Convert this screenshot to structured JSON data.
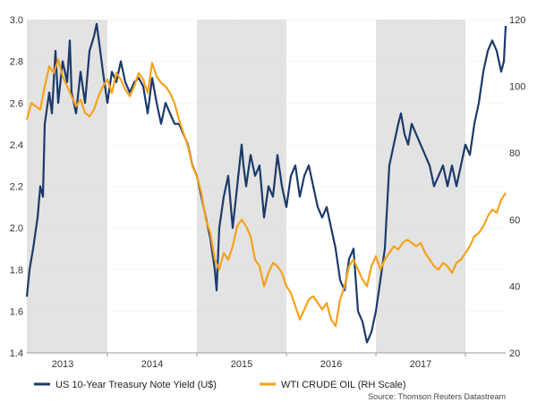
{
  "chart_data": {
    "type": "line",
    "title": "",
    "xlabel": "",
    "x_range": [
      2012.6,
      2017.95
    ],
    "left_axis": {
      "range": [
        1.4,
        3.0
      ],
      "ticks": [
        1.4,
        1.6,
        1.8,
        2.0,
        2.2,
        2.4,
        2.6,
        2.8,
        3.0
      ],
      "tick_labels": [
        "1.4",
        "1.6",
        "1.8",
        "2.0",
        "2.2",
        "2.4",
        "2.6",
        "2.8",
        "3.0"
      ]
    },
    "right_axis": {
      "range": [
        20,
        120
      ],
      "ticks": [
        20,
        40,
        60,
        80,
        100,
        120
      ],
      "tick_labels": [
        "20",
        "40",
        "60",
        "80",
        "100",
        "120"
      ]
    },
    "year_labels": [
      {
        "label": "2013",
        "x": 2013.0
      },
      {
        "label": "2014",
        "x": 2014.0
      },
      {
        "label": "2015",
        "x": 2015.0
      },
      {
        "label": "2016",
        "x": 2016.0
      },
      {
        "label": "2017",
        "x": 2017.0
      }
    ],
    "shaded_years": [
      [
        2012.6,
        2013.5
      ],
      [
        2014.5,
        2015.5
      ],
      [
        2016.5,
        2017.5
      ]
    ],
    "series": [
      {
        "name": "US 10-Year Treasury Note Yield (U$)",
        "axis": "left",
        "color": "#1b3a6b",
        "points": [
          [
            2012.6,
            1.67
          ],
          [
            2012.63,
            1.8
          ],
          [
            2012.67,
            1.9
          ],
          [
            2012.72,
            2.05
          ],
          [
            2012.75,
            2.2
          ],
          [
            2012.78,
            2.15
          ],
          [
            2012.8,
            2.5
          ],
          [
            2012.85,
            2.65
          ],
          [
            2012.88,
            2.55
          ],
          [
            2012.92,
            2.85
          ],
          [
            2012.95,
            2.6
          ],
          [
            2013.0,
            2.8
          ],
          [
            2013.05,
            2.7
          ],
          [
            2013.08,
            2.9
          ],
          [
            2013.1,
            2.65
          ],
          [
            2013.15,
            2.55
          ],
          [
            2013.2,
            2.75
          ],
          [
            2013.25,
            2.6
          ],
          [
            2013.3,
            2.85
          ],
          [
            2013.35,
            2.92
          ],
          [
            2013.38,
            2.98
          ],
          [
            2013.42,
            2.85
          ],
          [
            2013.45,
            2.75
          ],
          [
            2013.5,
            2.6
          ],
          [
            2013.55,
            2.75
          ],
          [
            2013.6,
            2.7
          ],
          [
            2013.65,
            2.8
          ],
          [
            2013.7,
            2.7
          ],
          [
            2013.75,
            2.65
          ],
          [
            2013.8,
            2.7
          ],
          [
            2013.85,
            2.72
          ],
          [
            2013.9,
            2.68
          ],
          [
            2013.95,
            2.55
          ],
          [
            2014.0,
            2.72
          ],
          [
            2014.05,
            2.6
          ],
          [
            2014.1,
            2.5
          ],
          [
            2014.15,
            2.6
          ],
          [
            2014.2,
            2.55
          ],
          [
            2014.25,
            2.5
          ],
          [
            2014.3,
            2.5
          ],
          [
            2014.35,
            2.45
          ],
          [
            2014.4,
            2.4
          ],
          [
            2014.45,
            2.3
          ],
          [
            2014.5,
            2.25
          ],
          [
            2014.55,
            2.15
          ],
          [
            2014.6,
            2.05
          ],
          [
            2014.65,
            1.95
          ],
          [
            2014.7,
            1.8
          ],
          [
            2014.72,
            1.7
          ],
          [
            2014.75,
            2.0
          ],
          [
            2014.8,
            2.15
          ],
          [
            2014.85,
            2.25
          ],
          [
            2014.88,
            2.1
          ],
          [
            2014.9,
            2.0
          ],
          [
            2014.95,
            2.2
          ],
          [
            2015.0,
            2.4
          ],
          [
            2015.02,
            2.3
          ],
          [
            2015.05,
            2.2
          ],
          [
            2015.1,
            2.35
          ],
          [
            2015.15,
            2.25
          ],
          [
            2015.2,
            2.3
          ],
          [
            2015.25,
            2.05
          ],
          [
            2015.3,
            2.2
          ],
          [
            2015.35,
            2.15
          ],
          [
            2015.4,
            2.35
          ],
          [
            2015.45,
            2.2
          ],
          [
            2015.5,
            2.1
          ],
          [
            2015.55,
            2.25
          ],
          [
            2015.6,
            2.3
          ],
          [
            2015.65,
            2.15
          ],
          [
            2015.7,
            2.25
          ],
          [
            2015.75,
            2.3
          ],
          [
            2015.8,
            2.2
          ],
          [
            2015.85,
            2.1
          ],
          [
            2015.9,
            2.05
          ],
          [
            2015.95,
            2.1
          ],
          [
            2016.0,
            2.0
          ],
          [
            2016.05,
            1.9
          ],
          [
            2016.1,
            1.75
          ],
          [
            2016.15,
            1.7
          ],
          [
            2016.2,
            1.85
          ],
          [
            2016.25,
            1.9
          ],
          [
            2016.3,
            1.6
          ],
          [
            2016.35,
            1.55
          ],
          [
            2016.4,
            1.45
          ],
          [
            2016.45,
            1.5
          ],
          [
            2016.5,
            1.6
          ],
          [
            2016.55,
            1.75
          ],
          [
            2016.6,
            1.9
          ],
          [
            2016.65,
            2.3
          ],
          [
            2016.7,
            2.4
          ],
          [
            2016.75,
            2.5
          ],
          [
            2016.78,
            2.55
          ],
          [
            2016.82,
            2.45
          ],
          [
            2016.86,
            2.4
          ],
          [
            2016.9,
            2.5
          ],
          [
            2016.95,
            2.45
          ],
          [
            2017.0,
            2.4
          ],
          [
            2017.05,
            2.35
          ],
          [
            2017.1,
            2.3
          ],
          [
            2017.15,
            2.2
          ],
          [
            2017.2,
            2.25
          ],
          [
            2017.25,
            2.3
          ],
          [
            2017.3,
            2.2
          ],
          [
            2017.35,
            2.3
          ],
          [
            2017.4,
            2.2
          ],
          [
            2017.45,
            2.3
          ],
          [
            2017.5,
            2.4
          ],
          [
            2017.55,
            2.35
          ],
          [
            2017.6,
            2.5
          ],
          [
            2017.65,
            2.6
          ],
          [
            2017.7,
            2.75
          ],
          [
            2017.75,
            2.85
          ],
          [
            2017.8,
            2.9
          ],
          [
            2017.85,
            2.85
          ],
          [
            2017.9,
            2.75
          ],
          [
            2017.93,
            2.8
          ],
          [
            2017.95,
            2.97
          ]
        ]
      },
      {
        "name": "WTI CRUDE OIL (RH Scale)",
        "axis": "right",
        "color": "#f5a21b",
        "points": [
          [
            2012.6,
            90
          ],
          [
            2012.65,
            95
          ],
          [
            2012.7,
            94
          ],
          [
            2012.75,
            93
          ],
          [
            2012.8,
            100
          ],
          [
            2012.85,
            106
          ],
          [
            2012.9,
            104
          ],
          [
            2012.95,
            108
          ],
          [
            2013.0,
            103
          ],
          [
            2013.05,
            100
          ],
          [
            2013.1,
            97
          ],
          [
            2013.15,
            94
          ],
          [
            2013.2,
            96
          ],
          [
            2013.25,
            92
          ],
          [
            2013.3,
            91
          ],
          [
            2013.35,
            93
          ],
          [
            2013.4,
            97
          ],
          [
            2013.45,
            100
          ],
          [
            2013.5,
            102
          ],
          [
            2013.55,
            98
          ],
          [
            2013.6,
            104
          ],
          [
            2013.65,
            102
          ],
          [
            2013.7,
            99
          ],
          [
            2013.75,
            97
          ],
          [
            2013.8,
            100
          ],
          [
            2013.85,
            104
          ],
          [
            2013.9,
            102
          ],
          [
            2013.95,
            98
          ],
          [
            2014.0,
            107
          ],
          [
            2014.05,
            103
          ],
          [
            2014.1,
            101
          ],
          [
            2014.15,
            100
          ],
          [
            2014.2,
            98
          ],
          [
            2014.25,
            95
          ],
          [
            2014.3,
            90
          ],
          [
            2014.35,
            86
          ],
          [
            2014.4,
            82
          ],
          [
            2014.45,
            76
          ],
          [
            2014.5,
            73
          ],
          [
            2014.55,
            68
          ],
          [
            2014.6,
            60
          ],
          [
            2014.65,
            56
          ],
          [
            2014.7,
            48
          ],
          [
            2014.75,
            45
          ],
          [
            2014.8,
            50
          ],
          [
            2014.85,
            48
          ],
          [
            2014.9,
            52
          ],
          [
            2014.95,
            58
          ],
          [
            2015.0,
            60
          ],
          [
            2015.05,
            58
          ],
          [
            2015.1,
            55
          ],
          [
            2015.15,
            48
          ],
          [
            2015.2,
            46
          ],
          [
            2015.25,
            40
          ],
          [
            2015.3,
            44
          ],
          [
            2015.35,
            47
          ],
          [
            2015.4,
            46
          ],
          [
            2015.45,
            44
          ],
          [
            2015.5,
            40
          ],
          [
            2015.55,
            38
          ],
          [
            2015.6,
            34
          ],
          [
            2015.65,
            30
          ],
          [
            2015.7,
            33
          ],
          [
            2015.75,
            36
          ],
          [
            2015.8,
            37
          ],
          [
            2015.85,
            35
          ],
          [
            2015.9,
            33
          ],
          [
            2015.95,
            35
          ],
          [
            2016.0,
            30
          ],
          [
            2016.05,
            28
          ],
          [
            2016.1,
            36
          ],
          [
            2016.15,
            40
          ],
          [
            2016.2,
            46
          ],
          [
            2016.25,
            48
          ],
          [
            2016.3,
            45
          ],
          [
            2016.35,
            42
          ],
          [
            2016.4,
            40
          ],
          [
            2016.45,
            46
          ],
          [
            2016.5,
            49
          ],
          [
            2016.55,
            45
          ],
          [
            2016.6,
            48
          ],
          [
            2016.65,
            50
          ],
          [
            2016.7,
            52
          ],
          [
            2016.75,
            51
          ],
          [
            2016.8,
            53
          ],
          [
            2016.85,
            54
          ],
          [
            2016.9,
            53
          ],
          [
            2016.95,
            52
          ],
          [
            2017.0,
            53
          ],
          [
            2017.05,
            50
          ],
          [
            2017.1,
            48
          ],
          [
            2017.15,
            46
          ],
          [
            2017.2,
            45
          ],
          [
            2017.25,
            47
          ],
          [
            2017.3,
            46
          ],
          [
            2017.35,
            44
          ],
          [
            2017.4,
            47
          ],
          [
            2017.45,
            48
          ],
          [
            2017.5,
            50
          ],
          [
            2017.55,
            52
          ],
          [
            2017.6,
            55
          ],
          [
            2017.65,
            56
          ],
          [
            2017.7,
            58
          ],
          [
            2017.75,
            61
          ],
          [
            2017.8,
            63
          ],
          [
            2017.85,
            62
          ],
          [
            2017.9,
            66
          ],
          [
            2017.95,
            68
          ]
        ]
      }
    ],
    "legend": [
      {
        "label": "US 10-Year Treasury Note Yield (U$)",
        "color": "#1b3a6b"
      },
      {
        "label": "WTI CRUDE OIL (RH Scale)",
        "color": "#f5a21b"
      }
    ],
    "source": "Source: Thomson Reuters Datastream"
  }
}
